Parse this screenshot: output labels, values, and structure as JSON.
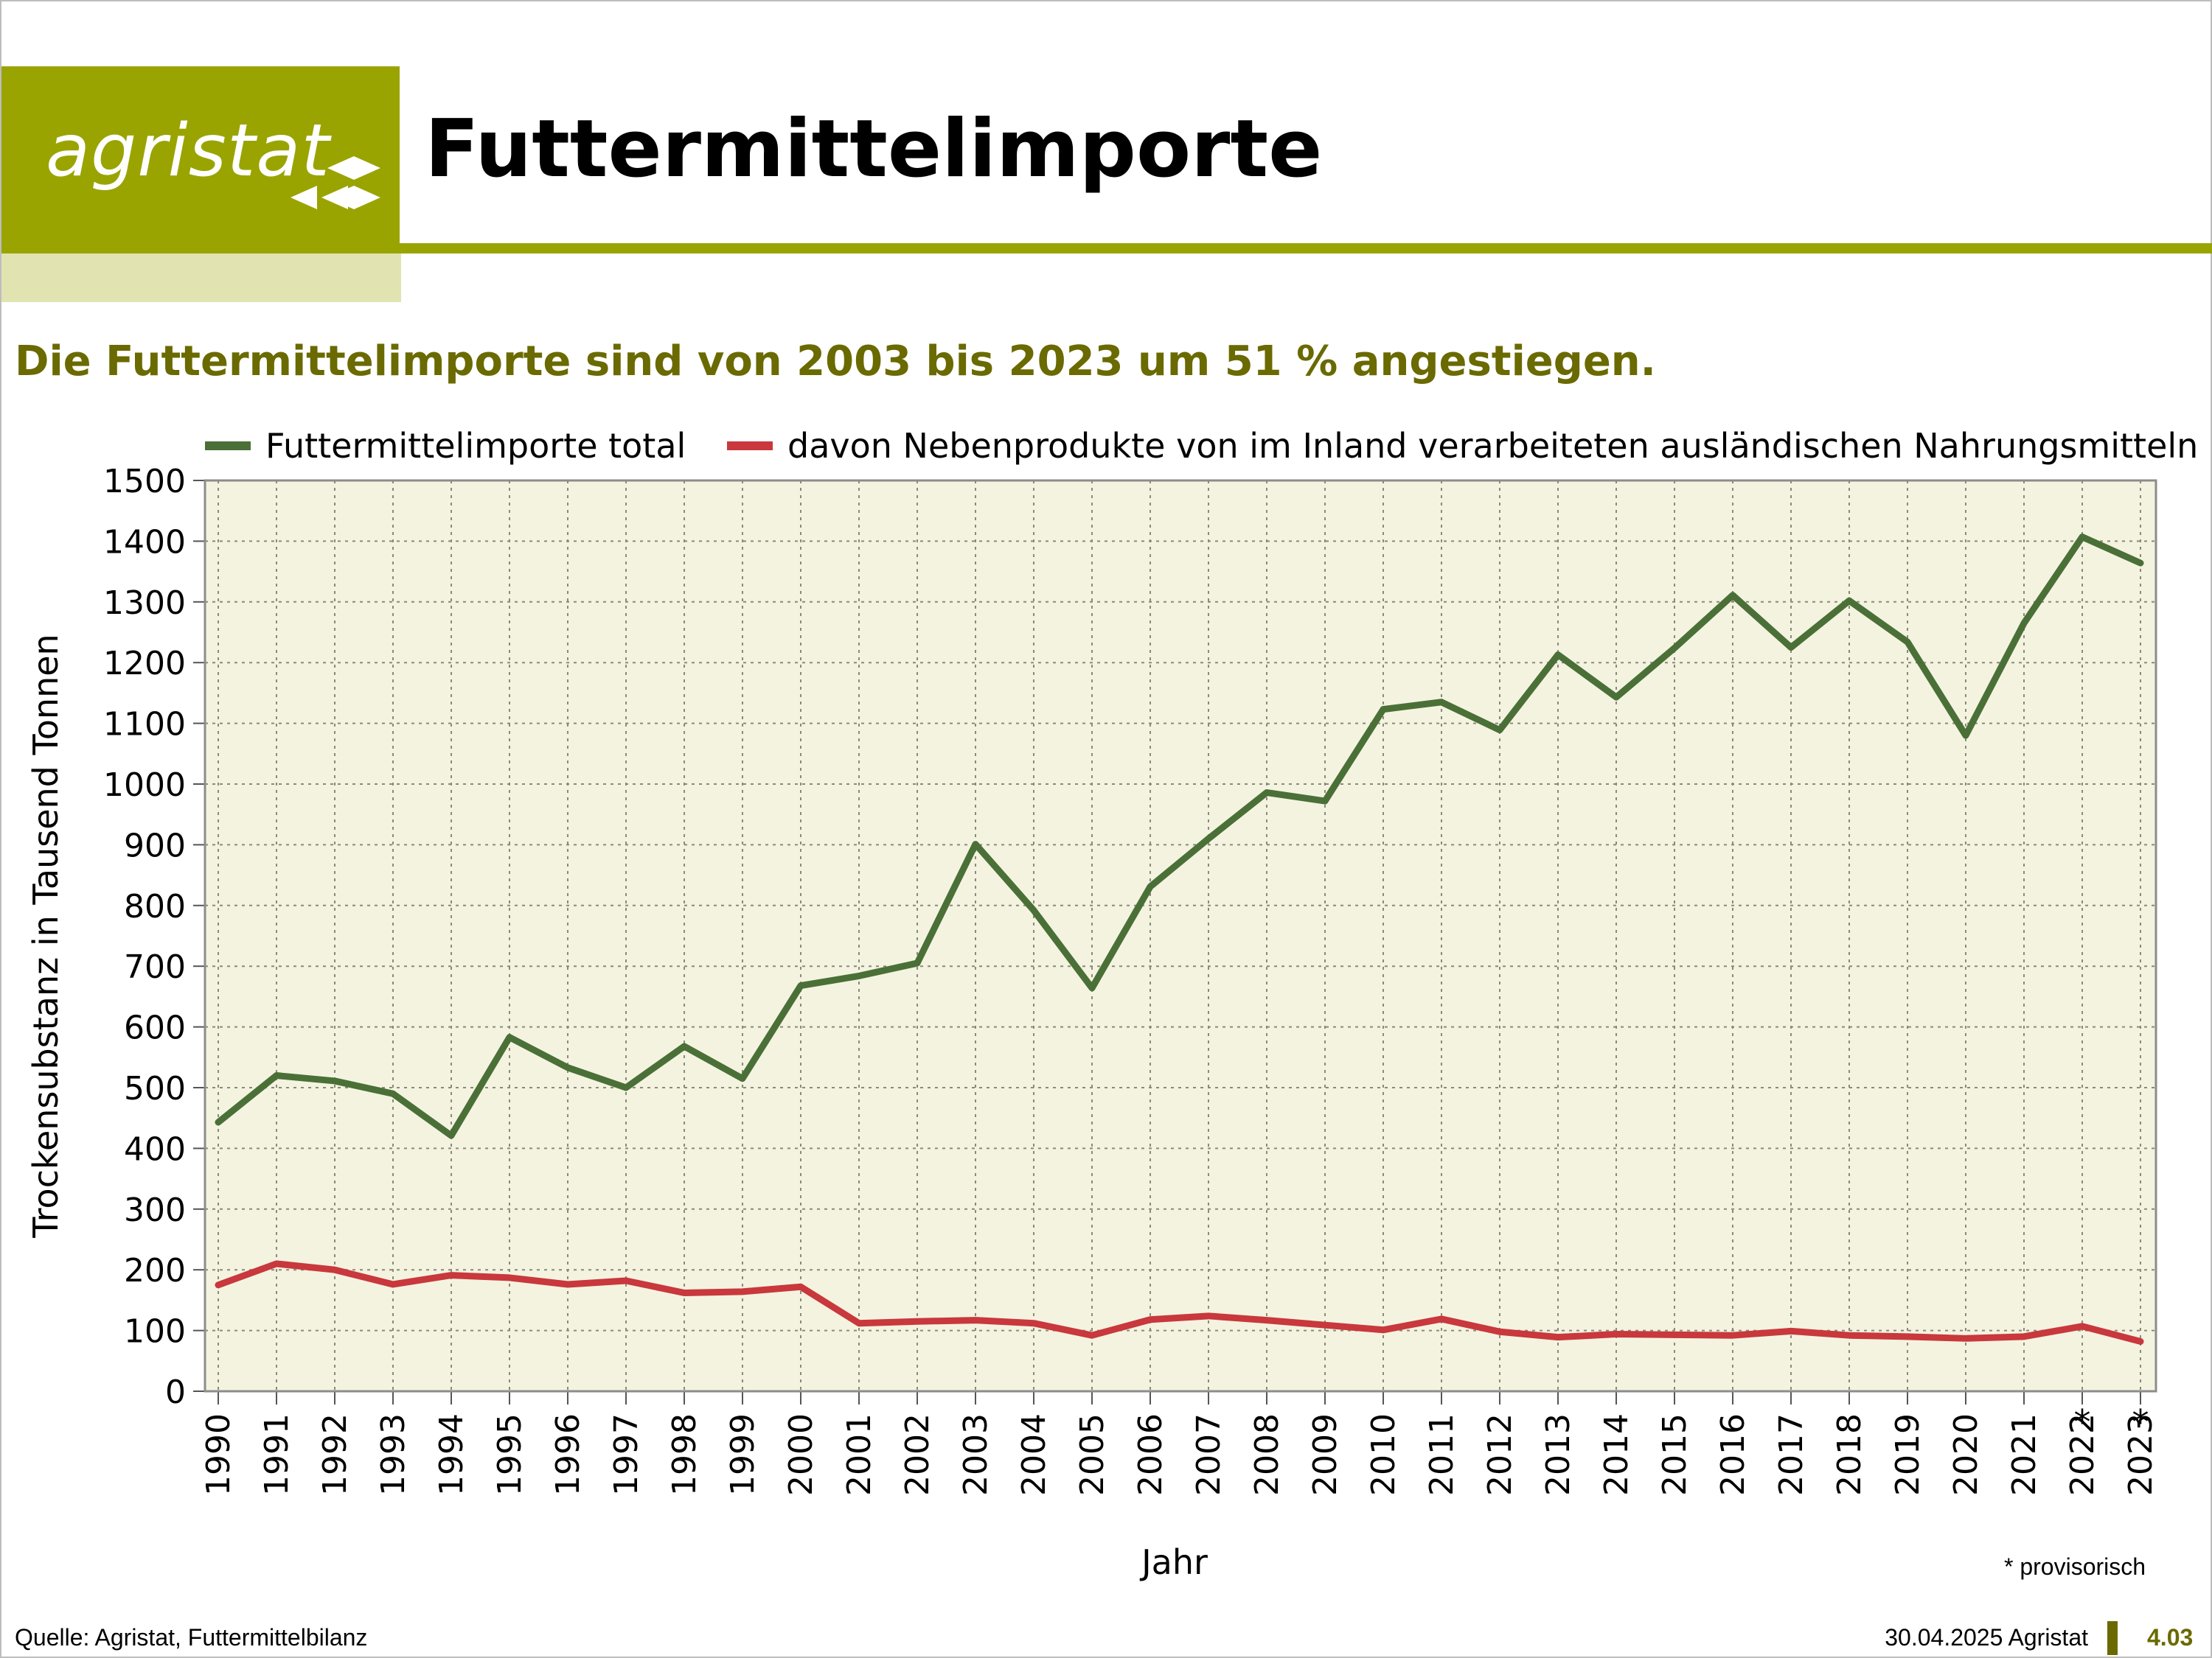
{
  "header": {
    "logo_text": "agristat",
    "title": "Futtermittelimporte"
  },
  "subtitle": "Die Futtermittelimporte sind von 2003 bis 2023 um 51 % angestiegen.",
  "colors": {
    "brand_olive": "#9aa400",
    "brand_light": "#e1e4b1",
    "subtitle": "#6a6a00",
    "plot_bg": "#f4f3e0",
    "series_total": "#4a7038",
    "series_byproducts": "#c8383c"
  },
  "chart_data": {
    "type": "line",
    "xlabel": "Jahr",
    "ylabel": "Trockensubstanz in Tausend Tonnen",
    "ylim": [
      0,
      1500
    ],
    "ytick_step": 100,
    "grid": true,
    "legend_position": "top",
    "categories": [
      "1990",
      "1991",
      "1992",
      "1993",
      "1994",
      "1995",
      "1996",
      "1997",
      "1998",
      "1999",
      "2000",
      "2001",
      "2002",
      "2003",
      "2004",
      "2005",
      "2006",
      "2007",
      "2008",
      "2009",
      "2010",
      "2011",
      "2012",
      "2013",
      "2014",
      "2015",
      "2016",
      "2017",
      "2018",
      "2019",
      "2020",
      "2021",
      "2022",
      "2023"
    ],
    "provisional_marks": [
      "",
      "",
      "",
      "",
      "",
      "",
      "",
      "",
      "",
      "",
      "",
      "",
      "",
      "",
      "",
      "",
      "",
      "",
      "",
      "",
      "",
      "",
      "",
      "",
      "",
      "",
      "",
      "",
      "",
      "",
      "",
      "",
      "*",
      "*"
    ],
    "series": [
      {
        "name": "Futtermittelimporte total",
        "color": "#4a7038",
        "values": [
          443,
          520,
          511,
          490,
          421,
          583,
          533,
          500,
          568,
          515,
          668,
          684,
          705,
          901,
          792,
          664,
          831,
          910,
          986,
          972,
          1123,
          1135,
          1089,
          1213,
          1143,
          1224,
          1311,
          1225,
          1302,
          1234,
          1080,
          1265,
          1407,
          1364
        ]
      },
      {
        "name": "davon Nebenprodukte von im Inland verarbeiteten ausländischen Nahrungsmitteln",
        "color": "#c8383c",
        "values": [
          175,
          210,
          200,
          176,
          191,
          187,
          176,
          182,
          162,
          164,
          172,
          112,
          115,
          117,
          112,
          92,
          118,
          124,
          117,
          109,
          101,
          119,
          98,
          89,
          94,
          93,
          92,
          99,
          92,
          90,
          87,
          90,
          107,
          82
        ]
      }
    ]
  },
  "footnote": "* provisorisch",
  "footer": {
    "source": "Quelle: Agristat, Futtermittelbilanz",
    "date_org": "30.04.2025 Agristat",
    "page_number": "4.03"
  }
}
